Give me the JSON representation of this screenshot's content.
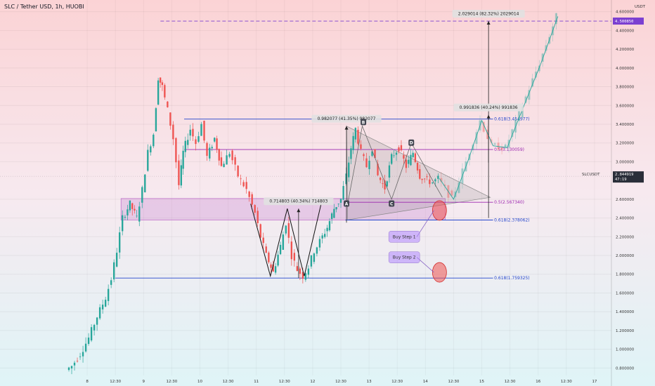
{
  "title": "SLC / Tether USD, 1h, HUOBI",
  "chart_data": {
    "type": "candlestick",
    "title": "SLC / Tether USD, 1h, HUOBI",
    "currency": "USDT",
    "ylim": [
      0.72,
      4.65
    ],
    "y_ticks": [
      {
        "value": 4.6,
        "label": "4.600000"
      },
      {
        "value": 4.4,
        "label": "4.400000"
      },
      {
        "value": 4.2,
        "label": "4.200000"
      },
      {
        "value": 4.0,
        "label": "4.000000"
      },
      {
        "value": 3.8,
        "label": "3.800000"
      },
      {
        "value": 3.6,
        "label": "3.600000"
      },
      {
        "value": 3.4,
        "label": "3.400000"
      },
      {
        "value": 3.2,
        "label": "3.200000"
      },
      {
        "value": 3.0,
        "label": "3.000000"
      },
      {
        "value": 2.6,
        "label": "2.600000"
      },
      {
        "value": 2.4,
        "label": "2.400000"
      },
      {
        "value": 2.2,
        "label": "2.200000"
      },
      {
        "value": 2.0,
        "label": "2.000000"
      },
      {
        "value": 1.8,
        "label": "1.800000"
      },
      {
        "value": 1.6,
        "label": "1.600000"
      },
      {
        "value": 1.4,
        "label": "1.400000"
      },
      {
        "value": 1.2,
        "label": "1.200000"
      },
      {
        "value": 1.0,
        "label": "1.000000"
      },
      {
        "value": 0.8,
        "label": "0.800000"
      }
    ],
    "x_ticks": [
      {
        "t": 0,
        "label": "8"
      },
      {
        "t": 0.5,
        "label": "12:30"
      },
      {
        "t": 1,
        "label": "9"
      },
      {
        "t": 1.5,
        "label": "12:30"
      },
      {
        "t": 2,
        "label": "10"
      },
      {
        "t": 2.5,
        "label": "12:30"
      },
      {
        "t": 3,
        "label": "11"
      },
      {
        "t": 3.5,
        "label": "12:30"
      },
      {
        "t": 4,
        "label": "12"
      },
      {
        "t": 4.5,
        "label": "12:30"
      },
      {
        "t": 5,
        "label": "13"
      },
      {
        "t": 5.5,
        "label": "12:30"
      },
      {
        "t": 6,
        "label": "14"
      },
      {
        "t": 6.5,
        "label": "12:30"
      },
      {
        "t": 7,
        "label": "15"
      },
      {
        "t": 7.5,
        "label": "12:30"
      },
      {
        "t": 8,
        "label": "16"
      },
      {
        "t": 8.5,
        "label": "12:30"
      },
      {
        "t": 9,
        "label": "17"
      }
    ],
    "price_path": [
      [
        -0.35,
        0.78
      ],
      [
        -0.25,
        0.82
      ],
      [
        -0.1,
        0.95
      ],
      [
        0.05,
        1.12
      ],
      [
        0.2,
        1.35
      ],
      [
        0.35,
        1.55
      ],
      [
        0.45,
        1.75
      ],
      [
        0.55,
        2.05
      ],
      [
        0.65,
        2.4
      ],
      [
        0.78,
        2.55
      ],
      [
        0.9,
        2.4
      ],
      [
        1.0,
        2.7
      ],
      [
        1.1,
        3.1
      ],
      [
        1.2,
        3.3
      ],
      [
        1.28,
        3.9
      ],
      [
        1.35,
        3.8
      ],
      [
        1.45,
        3.55
      ],
      [
        1.55,
        3.25
      ],
      [
        1.65,
        2.75
      ],
      [
        1.72,
        3.1
      ],
      [
        1.85,
        3.35
      ],
      [
        1.95,
        3.2
      ],
      [
        2.05,
        3.4
      ],
      [
        2.15,
        3.05
      ],
      [
        2.28,
        3.25
      ],
      [
        2.4,
        2.95
      ],
      [
        2.55,
        3.1
      ],
      [
        2.7,
        2.85
      ],
      [
        2.85,
        2.7
      ],
      [
        3.0,
        2.45
      ],
      [
        3.1,
        2.2
      ],
      [
        3.2,
        2.0
      ],
      [
        3.32,
        1.82
      ],
      [
        3.45,
        2.1
      ],
      [
        3.55,
        2.35
      ],
      [
        3.65,
        2.0
      ],
      [
        3.75,
        1.85
      ],
      [
        3.85,
        1.78
      ],
      [
        3.95,
        1.88
      ],
      [
        4.05,
        2.05
      ],
      [
        4.15,
        2.15
      ],
      [
        4.28,
        2.3
      ],
      [
        4.4,
        2.5
      ],
      [
        4.52,
        2.6
      ],
      [
        4.62,
        2.85
      ],
      [
        4.7,
        3.15
      ],
      [
        4.78,
        3.35
      ],
      [
        4.88,
        3.1
      ],
      [
        4.98,
        2.95
      ],
      [
        5.08,
        3.15
      ],
      [
        5.18,
        2.85
      ],
      [
        5.3,
        2.72
      ],
      [
        5.42,
        3.05
      ],
      [
        5.55,
        3.15
      ],
      [
        5.68,
        2.95
      ],
      [
        5.8,
        3.1
      ],
      [
        5.92,
        2.85
      ],
      [
        6.05,
        2.8
      ],
      [
        6.15,
        2.78
      ],
      [
        6.25,
        2.82
      ]
    ],
    "projection_path": [
      [
        6.25,
        2.82
      ],
      [
        6.5,
        2.6
      ],
      [
        6.75,
        3.0
      ],
      [
        7.0,
        3.44
      ],
      [
        7.2,
        3.17
      ],
      [
        7.45,
        3.15
      ],
      [
        7.75,
        3.6
      ],
      [
        8.05,
        4.05
      ],
      [
        8.35,
        4.55
      ]
    ],
    "levels": [
      {
        "name": "high-target",
        "value": 4.5,
        "style": "dashed",
        "color": "#7b3fd1",
        "label": "",
        "badge": "4.500850"
      },
      {
        "name": "fib-0618-upper",
        "value": 3.454977,
        "color": "#2244cc",
        "label": "0.618(3.454977)"
      },
      {
        "name": "fib-05-upper",
        "value": 3.130059,
        "color": "#9c27b0",
        "label": "0.5(3.130059)"
      },
      {
        "name": "fib-05-mid",
        "value": 2.56734,
        "color": "#9c27b0",
        "label": "0.5(2.567340)"
      },
      {
        "name": "fib-0618-mid",
        "value": 2.378062,
        "color": "#2244cc",
        "label": "0.618(2.378062)"
      },
      {
        "name": "fib-0618-low",
        "value": 1.759325,
        "color": "#2244cc",
        "label": "0.618(1.759325)"
      }
    ],
    "current_price": {
      "value": 2.844919,
      "label": "2.844919",
      "symbol": "SLCUSDT",
      "countdown": "47:19"
    },
    "measures": [
      {
        "label": "2.029014 (82.32%) 2029014",
        "x": 7.12,
        "from": 2.4,
        "to": 4.5
      },
      {
        "label": "0.991836 (40.24%) 991836",
        "x": 7.12,
        "from": 2.99,
        "to": 3.5
      },
      {
        "label": "0.982077 (41.35%) 982077",
        "x": 4.6,
        "from": 2.35,
        "to": 3.38
      },
      {
        "label": "0.714803 (40.34%) 714803",
        "x": 3.75,
        "from": 1.76,
        "to": 2.5
      }
    ],
    "points": [
      {
        "label": "A",
        "t": 4.6,
        "value": 2.55
      },
      {
        "label": "B",
        "t": 4.9,
        "value": 3.42
      },
      {
        "label": "C",
        "t": 5.4,
        "value": 2.55
      },
      {
        "label": "D",
        "t": 5.75,
        "value": 3.2
      }
    ],
    "annotations": [
      {
        "label": "Buy Step 1",
        "t": 6.25,
        "value": 2.5
      },
      {
        "label": "Buy Step 2",
        "t": 6.25,
        "value": 1.84
      }
    ]
  }
}
